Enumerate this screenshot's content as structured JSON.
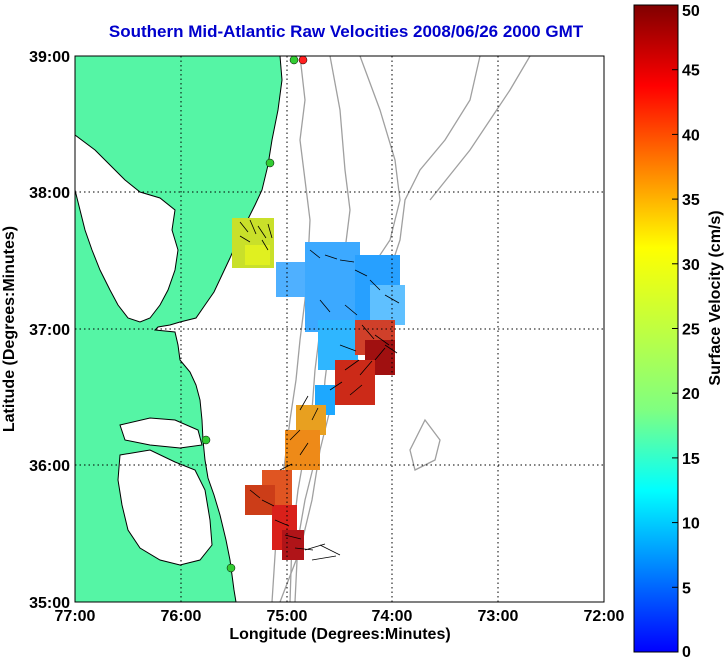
{
  "title": "Southern Mid-Atlantic Raw Velocities 2008/06/26 2000 GMT",
  "x_axis": {
    "label": "Longitude (Degrees:Minutes)",
    "ticks": [
      "77:00",
      "76:00",
      "75:00",
      "74:00",
      "73:00",
      "72:00"
    ]
  },
  "y_axis": {
    "label": "Latitude (Degrees:Minutes)",
    "ticks": [
      "39:00",
      "38:00",
      "37:00",
      "36:00",
      "35:00"
    ]
  },
  "colorbar": {
    "label": "Surface Velocity (cm/s)",
    "ticks": [
      "50",
      "45",
      "40",
      "35",
      "30",
      "25",
      "20",
      "15",
      "10",
      "5",
      "0"
    ],
    "min": 0,
    "max": 50
  },
  "colors": {
    "land": "#55f5a5",
    "title": "#0000cc",
    "radar_site": "#33cc33"
  }
}
